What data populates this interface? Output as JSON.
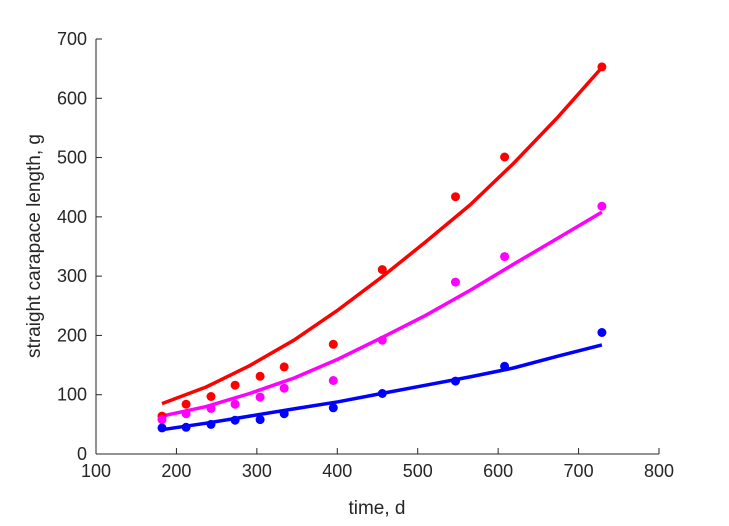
{
  "chart_data": {
    "type": "scatter",
    "title": "",
    "xlabel": "time, d",
    "ylabel": "straight carapace length, g",
    "xlim": [
      100,
      800
    ],
    "ylim": [
      0,
      700
    ],
    "xticks": [
      100,
      200,
      300,
      400,
      500,
      600,
      700,
      800
    ],
    "yticks": [
      0,
      100,
      200,
      300,
      400,
      500,
      600,
      700
    ],
    "grid": false,
    "series": [
      {
        "color": "#ff0000",
        "points": {
          "x": [
            182,
            212,
            243,
            273,
            304,
            334,
            395,
            456,
            547,
            608,
            729
          ],
          "y": [
            64,
            84,
            97,
            116,
            131,
            147,
            185,
            311,
            434,
            501,
            653
          ]
        },
        "fit": {
          "x": [
            182,
            237,
            291,
            346,
            401,
            455,
            510,
            565,
            619,
            674,
            729
          ],
          "y": [
            85,
            113,
            149,
            192,
            243,
            298,
            358,
            420,
            490,
            568,
            652
          ]
        }
      },
      {
        "color": "#ff00ff",
        "points": {
          "x": [
            182,
            212,
            243,
            273,
            304,
            334,
            395,
            456,
            547,
            608,
            729
          ],
          "y": [
            58,
            68,
            77,
            84,
            96,
            111,
            124,
            192,
            290,
            333,
            418
          ]
        },
        "fit": {
          "x": [
            182,
            237,
            291,
            346,
            401,
            455,
            510,
            565,
            619,
            674,
            729
          ],
          "y": [
            64,
            80,
            102,
            128,
            160,
            196,
            234,
            276,
            320,
            364,
            408
          ]
        }
      },
      {
        "color": "#0000ff",
        "points": {
          "x": [
            182,
            212,
            243,
            273,
            304,
            334,
            395,
            456,
            547,
            608,
            729
          ],
          "y": [
            44,
            45,
            50,
            57,
            58,
            68,
            78,
            102,
            123,
            148,
            205
          ]
        },
        "fit": {
          "x": [
            182,
            237,
            291,
            346,
            401,
            455,
            510,
            565,
            619,
            674,
            729
          ],
          "y": [
            41,
            52,
            64,
            76,
            88,
            102,
            116,
            130,
            145,
            165,
            184
          ]
        }
      }
    ]
  }
}
